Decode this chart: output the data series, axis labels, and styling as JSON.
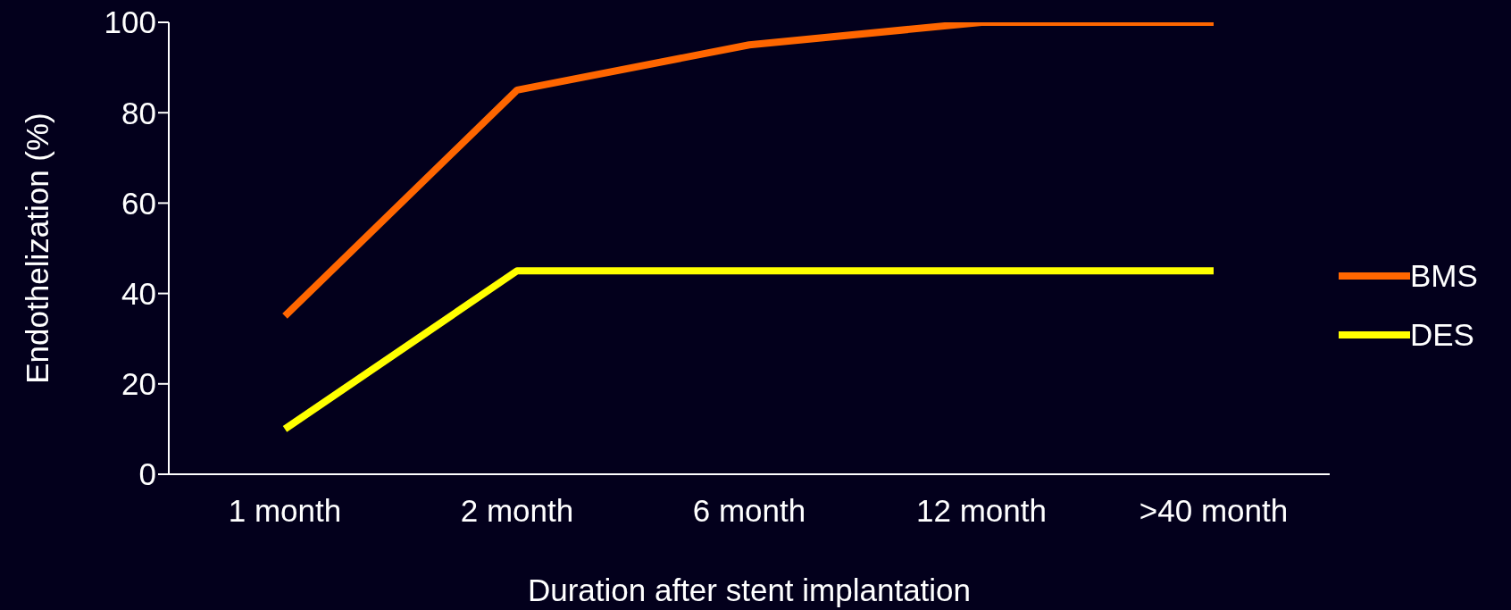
{
  "chart_data": {
    "type": "line",
    "xlabel": "Duration after stent implantation",
    "ylabel": "Endothelization (%)",
    "categories": [
      "1 month",
      "2 month",
      "6 month",
      "12 month",
      ">40 month"
    ],
    "series": [
      {
        "name": "BMS",
        "color": "#ff6600",
        "values": [
          35,
          85,
          95,
          100,
          100
        ]
      },
      {
        "name": "DES",
        "color": "#ffff00",
        "values": [
          10,
          45,
          45,
          45,
          45
        ]
      }
    ],
    "ylim": [
      0,
      100
    ],
    "yticks": [
      0,
      20,
      40,
      60,
      80,
      100
    ],
    "grid": false,
    "legend": "right",
    "marker": "none",
    "line_style": "solid"
  }
}
